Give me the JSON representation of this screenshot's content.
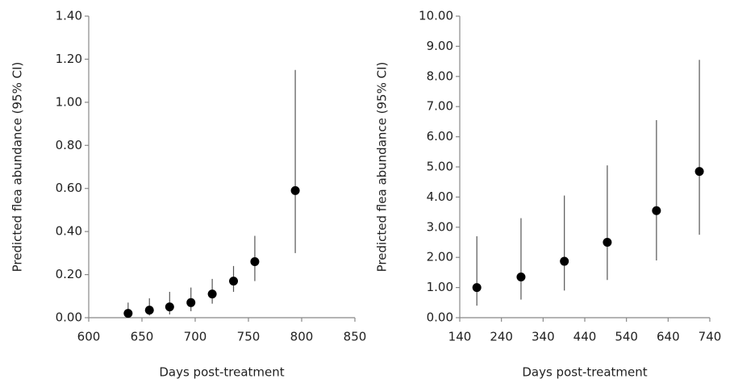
{
  "chart_data": [
    {
      "type": "scatter",
      "x_label": "Days post-treatment",
      "y_label": "Predicted flea abundance (95% CI)",
      "x": [
        637,
        657,
        676,
        696,
        716,
        736,
        756,
        794
      ],
      "values": [
        0.02,
        0.035,
        0.05,
        0.07,
        0.11,
        0.17,
        0.26,
        0.59
      ],
      "ci_low": [
        0.0,
        0.01,
        0.015,
        0.03,
        0.065,
        0.12,
        0.17,
        0.3
      ],
      "ci_high": [
        0.07,
        0.09,
        0.12,
        0.14,
        0.18,
        0.24,
        0.38,
        1.15
      ],
      "color": "#000000",
      "xlim": [
        600,
        850
      ],
      "xticks": [
        600,
        650,
        700,
        750,
        800,
        850
      ],
      "ylim": [
        0,
        1.4
      ],
      "yticks": [
        {
          "value": 0,
          "label": "0.00"
        },
        {
          "value": 0.2,
          "label": "0.20"
        },
        {
          "value": 0.4,
          "label": "0.40"
        },
        {
          "value": 0.6,
          "label": "0.60"
        },
        {
          "value": 0.8,
          "label": "0.80"
        },
        {
          "value": 1.0,
          "label": "1.00"
        },
        {
          "value": 1.2,
          "label": "1.20"
        },
        {
          "value": 1.4,
          "label": "1.40"
        }
      ]
    },
    {
      "type": "scatter",
      "x_label": "Days post-treatment",
      "y_label": "Predicted flea abundance (95% CI)",
      "x": [
        181,
        287,
        391,
        494,
        612,
        715
      ],
      "values": [
        1.0,
        1.35,
        1.87,
        2.5,
        3.55,
        4.85
      ],
      "ci_low": [
        0.4,
        0.6,
        0.9,
        1.25,
        1.9,
        2.75
      ],
      "ci_high": [
        2.7,
        3.3,
        4.05,
        5.05,
        6.55,
        8.55
      ],
      "color": "#000000",
      "xlim": [
        140,
        740
      ],
      "xticks": [
        140,
        240,
        340,
        440,
        540,
        640,
        740
      ],
      "ylim": [
        0,
        10
      ],
      "yticks": [
        {
          "value": 0,
          "label": "0.00"
        },
        {
          "value": 1,
          "label": "1.00"
        },
        {
          "value": 2,
          "label": "2.00"
        },
        {
          "value": 3,
          "label": "3.00"
        },
        {
          "value": 4,
          "label": "4.00"
        },
        {
          "value": 5,
          "label": "5.00"
        },
        {
          "value": 6,
          "label": "6.00"
        },
        {
          "value": 7,
          "label": "7.00"
        },
        {
          "value": 8,
          "label": "8.00"
        },
        {
          "value": 9,
          "label": "9.00"
        },
        {
          "value": 10,
          "label": "10.00"
        }
      ]
    }
  ]
}
